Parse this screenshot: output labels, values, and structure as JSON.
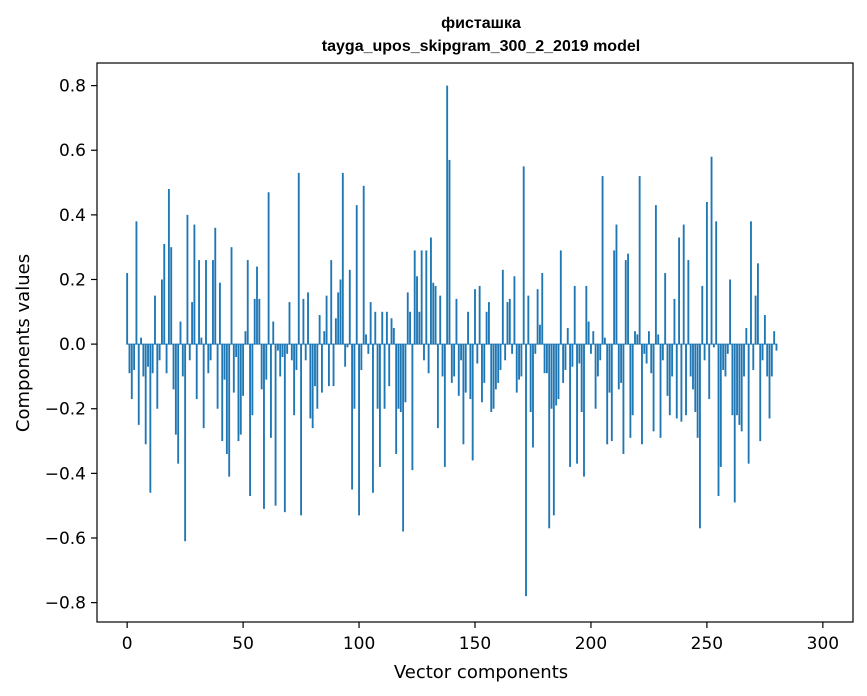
{
  "chart_data": {
    "type": "bar",
    "title_line1": "фисташка",
    "title_line2": "tayga_upos_skipgram_300_2_2019 model",
    "xlabel": "Vector components",
    "ylabel": "Components values",
    "xlim": [
      -13,
      313
    ],
    "ylim": [
      -0.86,
      0.87
    ],
    "xticks": [
      0,
      50,
      100,
      150,
      200,
      250,
      300
    ],
    "xtick_labels": [
      "0",
      "50",
      "100",
      "150",
      "200",
      "250",
      "300"
    ],
    "yticks": [
      -0.8,
      -0.6,
      -0.4,
      -0.2,
      0.0,
      0.2,
      0.4,
      0.6,
      0.8
    ],
    "ytick_labels": [
      "−0.8",
      "−0.6",
      "−0.4",
      "−0.2",
      "0.0",
      "0.2",
      "0.4",
      "0.6",
      "0.8"
    ],
    "grid": false,
    "bar_color": "#1f77b4",
    "values": [
      0.22,
      -0.09,
      -0.17,
      -0.08,
      0.38,
      -0.25,
      0.02,
      -0.1,
      -0.31,
      -0.07,
      -0.46,
      -0.09,
      0.15,
      -0.2,
      -0.05,
      0.2,
      0.31,
      -0.09,
      0.48,
      0.3,
      -0.14,
      -0.28,
      -0.37,
      0.07,
      -0.1,
      -0.61,
      0.4,
      -0.05,
      0.13,
      0.37,
      -0.17,
      0.26,
      0.02,
      -0.26,
      0.26,
      -0.09,
      -0.05,
      0.26,
      0.36,
      -0.2,
      0.19,
      -0.3,
      -0.11,
      -0.34,
      -0.41,
      0.3,
      -0.15,
      -0.04,
      -0.3,
      -0.28,
      -0.16,
      0.04,
      0.26,
      -0.47,
      -0.22,
      0.14,
      0.24,
      0.14,
      -0.14,
      -0.51,
      -0.11,
      0.47,
      -0.29,
      0.07,
      -0.5,
      -0.02,
      -0.1,
      -0.04,
      -0.52,
      -0.03,
      0.13,
      -0.05,
      -0.22,
      -0.08,
      0.53,
      -0.53,
      0.14,
      -0.05,
      0.16,
      -0.23,
      -0.26,
      -0.13,
      -0.2,
      0.09,
      -0.15,
      0.04,
      0.15,
      -0.13,
      0.26,
      -0.13,
      0.08,
      0.16,
      0.2,
      0.53,
      -0.07,
      -0.01,
      0.23,
      -0.45,
      -0.2,
      0.43,
      -0.53,
      -0.08,
      0.49,
      0.03,
      -0.03,
      0.13,
      -0.46,
      0.1,
      -0.2,
      -0.38,
      0.1,
      -0.2,
      0.1,
      -0.13,
      0.08,
      0.05,
      -0.34,
      -0.2,
      -0.21,
      -0.58,
      -0.18,
      0.16,
      0.1,
      -0.39,
      0.29,
      0.21,
      0.1,
      0.29,
      -0.05,
      0.29,
      -0.09,
      0.33,
      0.19,
      0.18,
      -0.26,
      0.15,
      -0.1,
      -0.38,
      0.8,
      0.57,
      -0.12,
      -0.1,
      0.14,
      -0.16,
      -0.05,
      -0.31,
      -0.15,
      0.1,
      -0.17,
      -0.36,
      0.17,
      -0.06,
      0.18,
      -0.18,
      -0.12,
      0.1,
      0.13,
      -0.21,
      -0.2,
      -0.14,
      -0.12,
      -0.08,
      0.23,
      -0.05,
      0.13,
      0.14,
      -0.03,
      0.21,
      -0.15,
      -0.11,
      -0.1,
      0.55,
      -0.78,
      0.15,
      -0.21,
      -0.32,
      -0.03,
      0.17,
      0.06,
      0.22,
      -0.09,
      -0.09,
      -0.57,
      -0.2,
      -0.53,
      -0.19,
      -0.17,
      0.29,
      -0.12,
      -0.08,
      0.05,
      -0.38,
      -0.07,
      0.18,
      -0.37,
      -0.06,
      -0.21,
      -0.41,
      0.18,
      0.07,
      -0.03,
      0.04,
      -0.2,
      -0.1,
      -0.05,
      0.52,
      0.02,
      -0.31,
      -0.15,
      -0.3,
      0.29,
      0.37,
      -0.14,
      -0.12,
      -0.34,
      0.26,
      0.28,
      -0.29,
      -0.22,
      0.04,
      0.03,
      0.52,
      -0.31,
      -0.03,
      -0.06,
      0.04,
      -0.09,
      -0.27,
      0.43,
      0.03,
      -0.29,
      -0.05,
      0.22,
      -0.16,
      -0.22,
      -0.1,
      0.14,
      -0.23,
      0.33,
      -0.24,
      0.37,
      -0.22,
      0.26,
      -0.1,
      -0.14,
      -0.21,
      -0.29,
      -0.57,
      0.18,
      -0.05,
      0.44,
      -0.17,
      0.58,
      -0.01,
      0.38,
      -0.47,
      -0.38,
      -0.08,
      -0.1,
      -0.03,
      0.2,
      -0.22,
      -0.49,
      -0.22,
      -0.25,
      -0.27,
      -0.1,
      0.05,
      -0.37,
      0.38,
      -0.08,
      0.15,
      0.25,
      -0.3,
      -0.05,
      0.09,
      -0.1,
      -0.23,
      -0.1,
      0.04,
      -0.02
    ]
  }
}
